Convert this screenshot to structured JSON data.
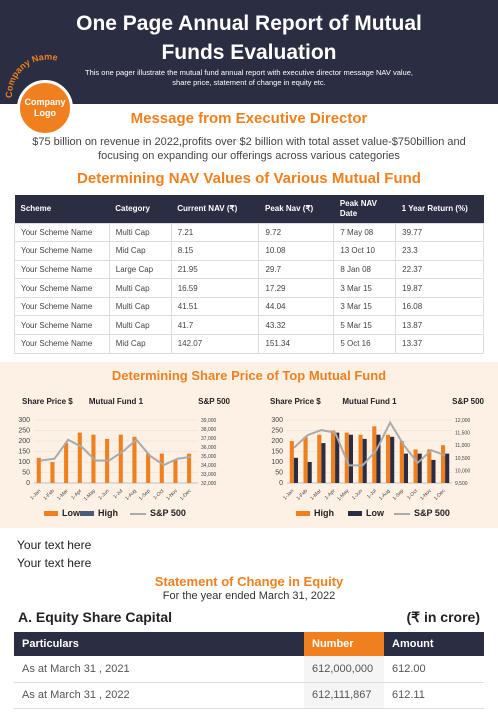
{
  "header": {
    "title": "One Page Annual Report of Mutual Funds Evaluation",
    "subtitle": "This one pager illustrate the mutual fund annual report with executive director message NAV value, share price, statement of change in equity etc.",
    "logo_arc": "Company Name",
    "logo_text": "Company Logo"
  },
  "message": {
    "title": "Message from Executive Director",
    "body": "$75 billion on revenue in 2022,profits over $2 billion with total asset value-$750billion and focusing on expanding our offerings across various categories"
  },
  "nav": {
    "title": "Determining NAV Values of Various Mutual Fund",
    "headers": [
      "Scheme",
      "Category",
      "Current NAV (₹)",
      "Peak Nav (₹)",
      "Peak NAV Date",
      "1 Year Return (%)"
    ],
    "rows": [
      [
        "Your Scheme Name",
        "Multi Cap",
        "7.21",
        "9.72",
        "7 May 08",
        "39.77"
      ],
      [
        "Your Scheme Name",
        "Mid Cap",
        "8.15",
        "10.08",
        "13 Oct 10",
        "23.3"
      ],
      [
        "Your Scheme Name",
        "Large Cap",
        "21.95",
        "29.7",
        "8 Jan 08",
        "22.37"
      ],
      [
        "Your Scheme Name",
        "Multi Cap",
        "16.59",
        "17.29",
        "3 Mar 15",
        "19.87"
      ],
      [
        "Your Scheme Name",
        "Multi Cap",
        "41.51",
        "44.04",
        "3 Mar 15",
        "16.08"
      ],
      [
        "Your Scheme Name",
        "Multi Cap",
        "41.7",
        "43.32",
        "5 Mar 15",
        "13.87"
      ],
      [
        "Your Scheme Name",
        "Mid Cap",
        "142.07",
        "151.34",
        "5 Oct 16",
        "13.37"
      ]
    ]
  },
  "share": {
    "title": "Determining Share Price of Top Mutual Fund"
  },
  "chart_data": [
    {
      "type": "bar",
      "title": "Mutual Fund 1",
      "ylabel": "Share Price $",
      "y2label": "S&P 500",
      "categories": [
        "1-Jan",
        "1-Feb",
        "1-Mar",
        "1-Apr",
        "1-May",
        "1-Jun",
        "1-Jul",
        "1-Aug",
        "1-Sep",
        "1-Oct",
        "1-Nov",
        "1-Dec"
      ],
      "ylim": [
        0,
        300
      ],
      "yticks": [
        "300",
        "250",
        "200",
        "150",
        "100",
        "50",
        "0"
      ],
      "y2lim": [
        32000,
        39000
      ],
      "y2ticks": [
        "39,000",
        "38,000",
        "37,000",
        "36,000",
        "35,000",
        "34,000",
        "33,000",
        "32,000"
      ],
      "series": [
        {
          "name": "Low",
          "kind": "bar",
          "color": "#f0801e",
          "values": [
            120,
            100,
            190,
            240,
            230,
            210,
            230,
            220,
            140,
            140,
            110,
            140
          ]
        },
        {
          "name": "High",
          "kind": "bar",
          "color": "#4a5a7a",
          "values": [
            0,
            0,
            0,
            0,
            0,
            0,
            0,
            0,
            0,
            0,
            0,
            0
          ]
        },
        {
          "name": "S&P 500",
          "kind": "line",
          "axis": "y2",
          "color": "#aaaaaa",
          "values": [
            34500,
            34700,
            36800,
            36000,
            34500,
            34500,
            35500,
            36800,
            35000,
            34000,
            34700,
            34900
          ]
        }
      ]
    },
    {
      "type": "bar",
      "title": "Mutual Fund 1",
      "ylabel": "Share Price $",
      "y2label": "S&P 500",
      "categories": [
        "1-Jan",
        "1-Feb",
        "1-Mar",
        "1-Apr",
        "1-May",
        "1-Jun",
        "1-Jul",
        "1-Aug",
        "1-Sep",
        "1-Oct",
        "1-Nov",
        "1-Dec"
      ],
      "ylim": [
        0,
        300
      ],
      "yticks": [
        "300",
        "250",
        "200",
        "150",
        "100",
        "50",
        "0"
      ],
      "y2lim": [
        9500,
        12000
      ],
      "y2ticks": [
        "12,000",
        "11,500",
        "11,000",
        "10,500",
        "10,000",
        "9,500"
      ],
      "series": [
        {
          "name": "High",
          "kind": "bar",
          "color": "#f0801e",
          "values": [
            200,
            220,
            230,
            250,
            240,
            230,
            270,
            230,
            200,
            160,
            160,
            180
          ]
        },
        {
          "name": "Low",
          "kind": "bar",
          "color": "#2b2d42",
          "values": [
            120,
            100,
            190,
            240,
            230,
            210,
            230,
            220,
            140,
            140,
            110,
            140
          ]
        },
        {
          "name": "S&P 500",
          "kind": "line",
          "axis": "y2",
          "color": "#aaaaaa",
          "values": [
            10900,
            11400,
            11600,
            11500,
            10200,
            10200,
            10800,
            11900,
            11000,
            10300,
            10800,
            10600
          ]
        }
      ]
    }
  ],
  "your_text": [
    "Your text here",
    "Your text here"
  ],
  "equity": {
    "title": "Statement of Change in Equity",
    "subtitle": "For the year ended March 31, 2022",
    "section": "A. Equity Share Capital",
    "unit": "(₹ in crore)",
    "headers": [
      "Particulars",
      "Number",
      "Amount"
    ],
    "rows": [
      [
        "As at March 31 , 2021",
        "612,000,000",
        "612.00"
      ],
      [
        "As at March 31 , 2022",
        "612,111,867",
        "612.11"
      ]
    ]
  }
}
